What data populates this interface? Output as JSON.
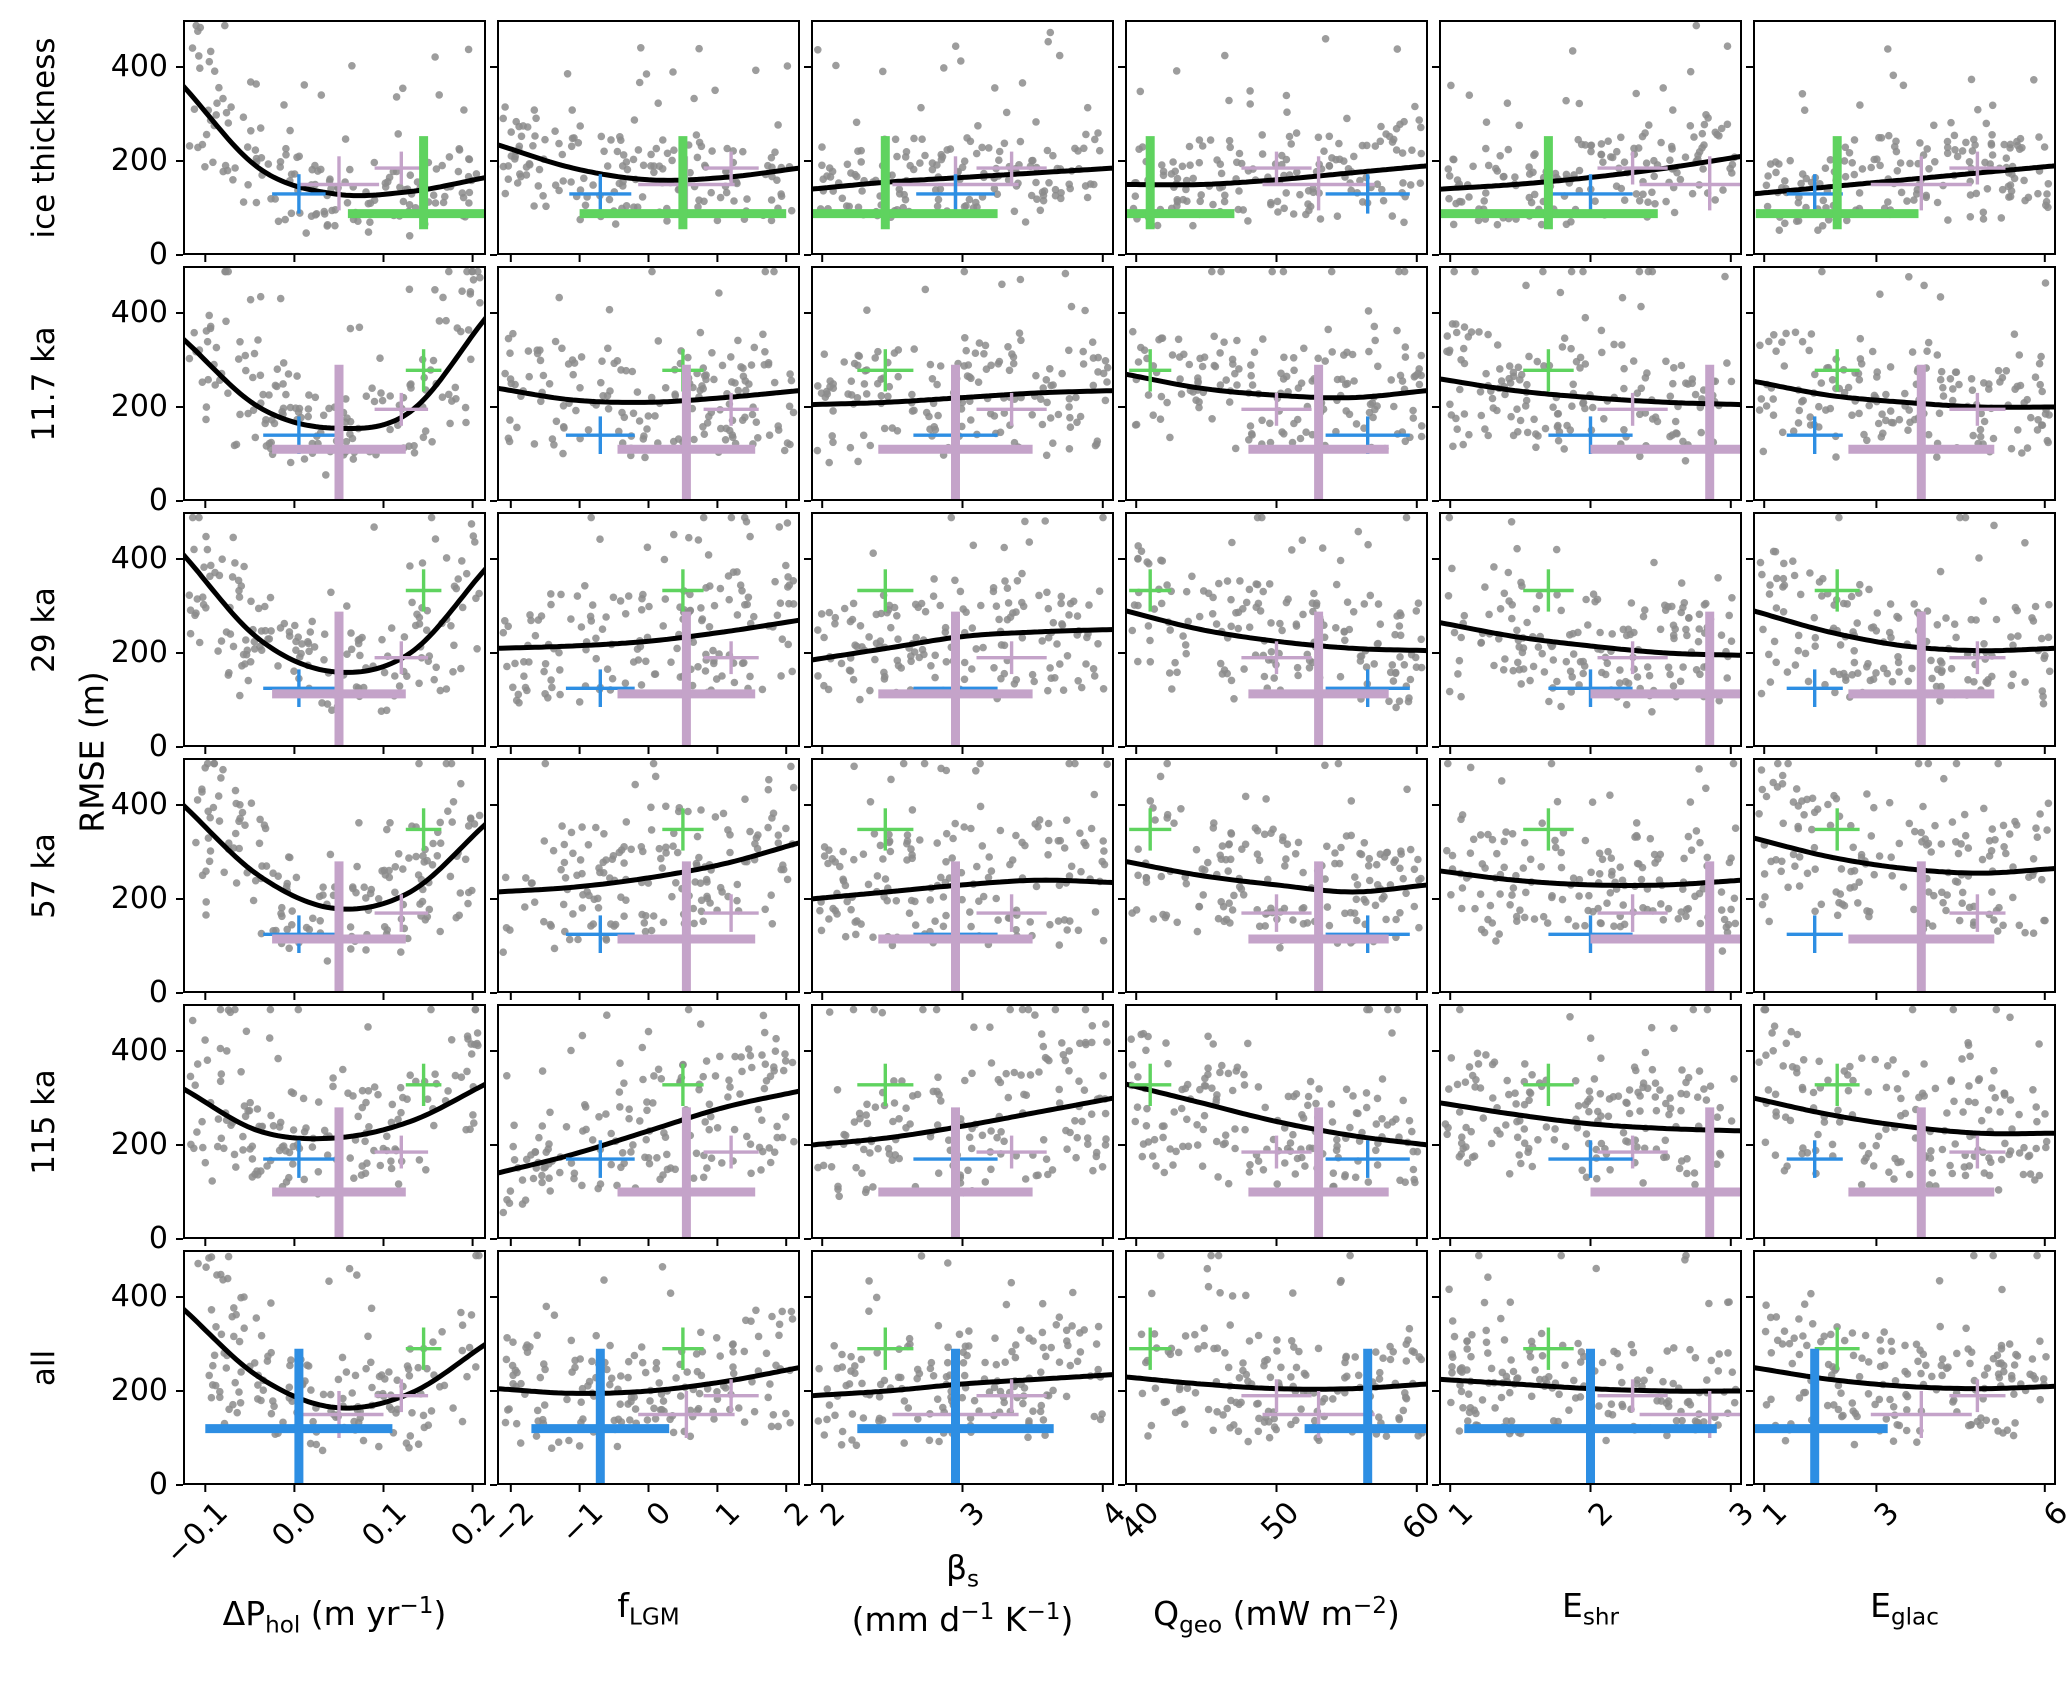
{
  "figure": {
    "kind": "scatter-grid-6x6",
    "background": "#ffffff"
  },
  "chart_data": {
    "type": "scatter",
    "ylabel": "RMSE (m)",
    "ylim": [
      0,
      500
    ],
    "yticks": {
      "labels": [
        "0",
        "200",
        "400"
      ],
      "values": [
        0,
        200,
        400
      ]
    },
    "colors": {
      "scatter": "#8c8c8c",
      "trend": "#000000",
      "green": "#5fd35f",
      "blue": "#2d8ee3",
      "purple": "#c4a3c9"
    },
    "scatter_points_per_panel": 165,
    "marker_x": {
      "green": [
        0.145,
        0.5,
        2.45,
        41,
        1.7,
        2.3
      ],
      "blue": [
        0.005,
        -0.7,
        2.95,
        56.5,
        2.0,
        1.9
      ],
      "purple": [
        0.05,
        0.55,
        2.95,
        53,
        2.85,
        3.8
      ],
      "purple2": [
        0.12,
        1.2,
        3.35,
        50,
        2.3,
        4.8
      ]
    },
    "rows": [
      {
        "label": "ice thickness",
        "markers": [
          {
            "xkey": "purple2",
            "color": "purple",
            "y": 185,
            "ye": [
              35,
              35
            ],
            "xe": [
              0.03,
              0.4,
              0.25,
              2.5,
              0.25,
              0.5
            ]
          },
          {
            "xkey": "purple",
            "color": "purple",
            "y": 150,
            "ye": [
              55,
              60
            ],
            "xe": [
              0.045,
              0.7,
              0.45,
              4,
              0.5,
              0.9
            ]
          },
          {
            "xkey": "blue",
            "color": "blue",
            "y": 130,
            "ye": [
              42,
              42
            ],
            "xe": [
              0.03,
              0.45,
              0.28,
              3,
              0.3,
              0.5
            ]
          },
          {
            "xkey": "green",
            "color": "green",
            "thick": true,
            "y": 88,
            "ye": [
              33,
              165
            ],
            "xe": [
              0.085,
              1.5,
              0.8,
              6,
              0.78,
              1.45
            ]
          }
        ]
      },
      {
        "label": "11.7 ka",
        "markers": [
          {
            "xkey": "purple2",
            "color": "purple",
            "y": 195,
            "ye": [
              35,
              35
            ],
            "xe": [
              0.03,
              0.4,
              0.25,
              2.5,
              0.25,
              0.5
            ]
          },
          {
            "xkey": "blue",
            "color": "blue",
            "y": 140,
            "ye": [
              40,
              40
            ],
            "xe": [
              0.04,
              0.5,
              0.3,
              3,
              0.3,
              0.5
            ]
          },
          {
            "xkey": "green",
            "color": "green",
            "y": 278,
            "ye": [
              45,
              45
            ],
            "xe": [
              0.02,
              0.3,
              0.2,
              1.5,
              0.18,
              0.4
            ]
          },
          {
            "xkey": "purple",
            "color": "purple",
            "thick": true,
            "y": 110,
            "ye": [
              110,
              180
            ],
            "xe": [
              0.075,
              1.0,
              0.55,
              5,
              0.85,
              1.3
            ]
          }
        ]
      },
      {
        "label": "29 ka",
        "markers": [
          {
            "xkey": "purple2",
            "color": "purple",
            "y": 190,
            "ye": [
              35,
              35
            ],
            "xe": [
              0.03,
              0.4,
              0.25,
              2.5,
              0.25,
              0.5
            ]
          },
          {
            "xkey": "blue",
            "color": "blue",
            "y": 125,
            "ye": [
              40,
              40
            ],
            "xe": [
              0.04,
              0.5,
              0.3,
              3,
              0.3,
              0.5
            ]
          },
          {
            "xkey": "green",
            "color": "green",
            "y": 333,
            "ye": [
              45,
              45
            ],
            "xe": [
              0.02,
              0.3,
              0.2,
              1.5,
              0.18,
              0.4
            ]
          },
          {
            "xkey": "purple",
            "color": "purple",
            "thick": true,
            "y": 113,
            "ye": [
              113,
              175
            ],
            "xe": [
              0.075,
              1.0,
              0.55,
              5,
              0.85,
              1.3
            ]
          }
        ]
      },
      {
        "label": "57 ka",
        "markers": [
          {
            "xkey": "purple2",
            "color": "purple",
            "y": 170,
            "ye": [
              40,
              40
            ],
            "xe": [
              0.03,
              0.4,
              0.25,
              2.5,
              0.25,
              0.5
            ]
          },
          {
            "xkey": "blue",
            "color": "blue",
            "y": 125,
            "ye": [
              40,
              40
            ],
            "xe": [
              0.04,
              0.5,
              0.3,
              3,
              0.3,
              0.5
            ]
          },
          {
            "xkey": "green",
            "color": "green",
            "y": 348,
            "ye": [
              45,
              45
            ],
            "xe": [
              0.02,
              0.3,
              0.2,
              1.5,
              0.18,
              0.4
            ]
          },
          {
            "xkey": "purple",
            "color": "purple",
            "thick": true,
            "y": 115,
            "ye": [
              115,
              165
            ],
            "xe": [
              0.075,
              1.0,
              0.55,
              5,
              0.85,
              1.3
            ]
          }
        ]
      },
      {
        "label": "115 ka",
        "markers": [
          {
            "xkey": "purple2",
            "color": "purple",
            "y": 185,
            "ye": [
              35,
              35
            ],
            "xe": [
              0.03,
              0.4,
              0.25,
              2.5,
              0.25,
              0.5
            ]
          },
          {
            "xkey": "blue",
            "color": "blue",
            "y": 170,
            "ye": [
              40,
              40
            ],
            "xe": [
              0.04,
              0.5,
              0.3,
              3,
              0.3,
              0.5
            ]
          },
          {
            "xkey": "green",
            "color": "green",
            "y": 328,
            "ye": [
              45,
              45
            ],
            "xe": [
              0.02,
              0.3,
              0.2,
              1.5,
              0.18,
              0.4
            ]
          },
          {
            "xkey": "purple",
            "color": "purple",
            "thick": true,
            "y": 100,
            "ye": [
              100,
              180
            ],
            "xe": [
              0.075,
              1.0,
              0.55,
              5,
              0.85,
              1.3
            ]
          }
        ]
      },
      {
        "label": "all",
        "markers": [
          {
            "xkey": "purple2",
            "color": "purple",
            "y": 190,
            "ye": [
              35,
              35
            ],
            "xe": [
              0.03,
              0.4,
              0.25,
              2.5,
              0.25,
              0.5
            ]
          },
          {
            "xkey": "purple",
            "color": "purple",
            "y": 150,
            "ye": [
              50,
              50
            ],
            "xe": [
              0.05,
              0.7,
              0.45,
              4,
              0.5,
              0.9
            ]
          },
          {
            "xkey": "green",
            "color": "green",
            "y": 290,
            "ye": [
              45,
              45
            ],
            "xe": [
              0.02,
              0.3,
              0.2,
              1.5,
              0.18,
              0.4
            ]
          },
          {
            "xkey": "blue",
            "color": "blue",
            "thick": true,
            "y": 120,
            "ye": [
              120,
              170
            ],
            "xe": [
              0.105,
              1.0,
              0.7,
              4.5,
              0.9,
              1.3
            ]
          }
        ]
      }
    ],
    "cols": [
      {
        "key": "dP_hol",
        "range": [
          -0.125,
          0.215
        ],
        "ticks": {
          "labels": [
            "−0.1",
            "0.0",
            "0.1",
            "0.2"
          ],
          "values": [
            -0.1,
            0.0,
            0.1,
            0.2
          ]
        },
        "label": [
          {
            "t": "ΔP"
          },
          {
            "t": "hol",
            "s": "sub"
          },
          {
            "t": " (m yr"
          },
          {
            "t": "−1",
            "s": "sup"
          },
          {
            "t": ")"
          }
        ]
      },
      {
        "key": "f_LGM",
        "range": [
          -2.2,
          2.2
        ],
        "ticks": {
          "labels": [
            "−2",
            "−1",
            "0",
            "1",
            "2"
          ],
          "values": [
            -2,
            -1,
            0,
            1,
            2
          ]
        },
        "label": [
          {
            "t": "f"
          },
          {
            "t": "LGM",
            "s": "sub"
          }
        ]
      },
      {
        "key": "beta_s",
        "range": [
          1.92,
          4.08
        ],
        "ticks": {
          "labels": [
            "2",
            "3",
            "4"
          ],
          "values": [
            2,
            3,
            4
          ]
        },
        "label": [
          {
            "t": "β"
          },
          {
            "t": "s",
            "s": "sub"
          }
        ],
        "label2": [
          {
            "t": "(mm d"
          },
          {
            "t": "−1",
            "s": "sup"
          },
          {
            "t": " K"
          },
          {
            "t": "−1",
            "s": "sup"
          },
          {
            "t": ")"
          }
        ]
      },
      {
        "key": "Q_geo",
        "range": [
          39.2,
          60.8
        ],
        "ticks": {
          "labels": [
            "40",
            "50",
            "60"
          ],
          "values": [
            40,
            50,
            60
          ]
        },
        "label": [
          {
            "t": "Q"
          },
          {
            "t": "geo",
            "s": "sub"
          },
          {
            "t": " (mW m"
          },
          {
            "t": "−2",
            "s": "sup"
          },
          {
            "t": ")"
          }
        ]
      },
      {
        "key": "E_shr",
        "range": [
          0.92,
          3.08
        ],
        "ticks": {
          "labels": [
            "1",
            "2",
            "3"
          ],
          "values": [
            1,
            2,
            3
          ]
        },
        "label": [
          {
            "t": "E"
          },
          {
            "t": "shr",
            "s": "sub"
          }
        ]
      },
      {
        "key": "E_glac",
        "range": [
          0.8,
          6.2
        ],
        "ticks": {
          "labels": [
            "1",
            "3",
            "6"
          ],
          "values": [
            1,
            3,
            6
          ]
        },
        "label": [
          {
            "t": "E"
          },
          {
            "t": "glac",
            "s": "sub"
          }
        ]
      }
    ],
    "trend": [
      [
        [
          360,
          185,
          130,
          135,
          165
        ],
        [
          235,
          185,
          160,
          165,
          185
        ],
        [
          140,
          155,
          165,
          175,
          185
        ],
        [
          150,
          150,
          160,
          175,
          190
        ],
        [
          140,
          150,
          165,
          185,
          210
        ],
        [
          130,
          145,
          160,
          175,
          190
        ]
      ],
      [
        [
          345,
          200,
          155,
          190,
          390
        ],
        [
          240,
          215,
          210,
          220,
          235
        ],
        [
          205,
          210,
          220,
          230,
          235
        ],
        [
          270,
          240,
          225,
          220,
          235
        ],
        [
          260,
          235,
          220,
          210,
          205
        ],
        [
          255,
          225,
          210,
          200,
          200
        ]
      ],
      [
        [
          410,
          230,
          160,
          200,
          380
        ],
        [
          210,
          215,
          225,
          245,
          270
        ],
        [
          185,
          210,
          235,
          245,
          250
        ],
        [
          290,
          250,
          225,
          210,
          205
        ],
        [
          265,
          235,
          215,
          200,
          195
        ],
        [
          290,
          245,
          215,
          205,
          210
        ]
      ],
      [
        [
          400,
          250,
          180,
          215,
          360
        ],
        [
          215,
          225,
          245,
          275,
          320
        ],
        [
          200,
          215,
          230,
          240,
          235
        ],
        [
          280,
          250,
          230,
          215,
          230
        ],
        [
          260,
          240,
          230,
          230,
          240
        ],
        [
          330,
          290,
          265,
          255,
          265
        ]
      ],
      [
        [
          320,
          230,
          215,
          250,
          330
        ],
        [
          140,
          180,
          230,
          280,
          315
        ],
        [
          200,
          215,
          240,
          270,
          300
        ],
        [
          330,
          290,
          250,
          220,
          200
        ],
        [
          290,
          265,
          245,
          235,
          230
        ],
        [
          300,
          265,
          240,
          225,
          225
        ]
      ],
      [
        [
          375,
          230,
          165,
          195,
          300
        ],
        [
          205,
          195,
          200,
          220,
          250
        ],
        [
          190,
          200,
          215,
          225,
          235
        ],
        [
          230,
          215,
          205,
          205,
          215
        ],
        [
          225,
          215,
          205,
          200,
          200
        ],
        [
          250,
          225,
          210,
          205,
          210
        ]
      ]
    ]
  }
}
